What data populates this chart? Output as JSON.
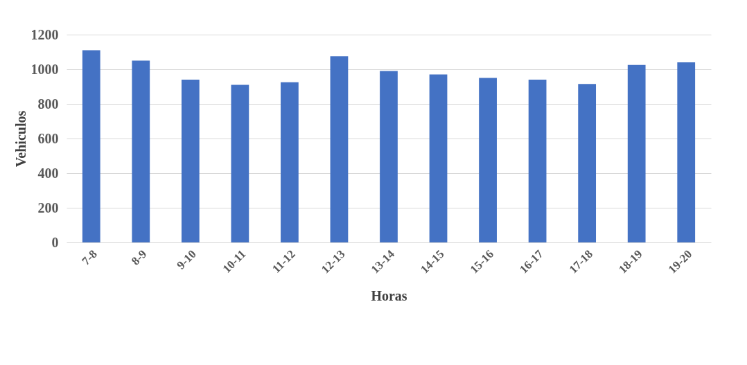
{
  "chart_data": {
    "type": "bar",
    "xlabel": "Horas",
    "ylabel": "Vehiculos",
    "categories": [
      "7-8",
      "8-9",
      "9-10",
      "10-11",
      "11-12",
      "12-13",
      "13-14",
      "14-15",
      "15-16",
      "16-17",
      "17-18",
      "18-19",
      "19-20"
    ],
    "values": [
      1110,
      1050,
      940,
      910,
      925,
      1075,
      990,
      970,
      950,
      940,
      915,
      1025,
      1040
    ],
    "color": "#4472c4",
    "ylim": [
      0,
      1200
    ],
    "yticks": [
      0,
      200,
      400,
      600,
      800,
      1000,
      1200
    ],
    "grid": "y"
  }
}
